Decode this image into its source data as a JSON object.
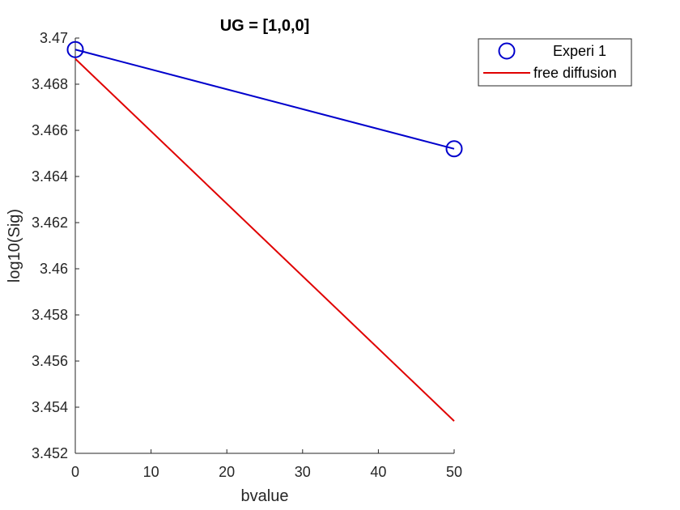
{
  "chart_data": {
    "type": "line",
    "title": "UG = [1,0,0]",
    "xlabel": "bvalue",
    "ylabel": "log10(Sig)",
    "xlim": [
      0,
      50
    ],
    "ylim": [
      3.452,
      3.47
    ],
    "xticks": [
      0,
      10,
      20,
      30,
      40,
      50
    ],
    "xtick_labels": [
      "0",
      "10",
      "20",
      "30",
      "40",
      "50"
    ],
    "yticks": [
      3.452,
      3.454,
      3.456,
      3.458,
      3.46,
      3.462,
      3.464,
      3.466,
      3.468,
      3.47
    ],
    "ytick_labels": [
      "3.452",
      "3.454",
      "3.456",
      "3.458",
      "3.46",
      "3.462",
      "3.464",
      "3.466",
      "3.468",
      "3.47"
    ],
    "grid": false,
    "legend_position": "outside-top-right",
    "series": [
      {
        "name": "Experi 1",
        "style": "line-with-circle-markers",
        "color": "#0000cc",
        "x": [
          0,
          50
        ],
        "y": [
          3.4695,
          3.4652
        ]
      },
      {
        "name": "free diffusion",
        "style": "line",
        "color": "#e00000",
        "x": [
          0,
          50
        ],
        "y": [
          3.4691,
          3.4534
        ]
      }
    ]
  }
}
